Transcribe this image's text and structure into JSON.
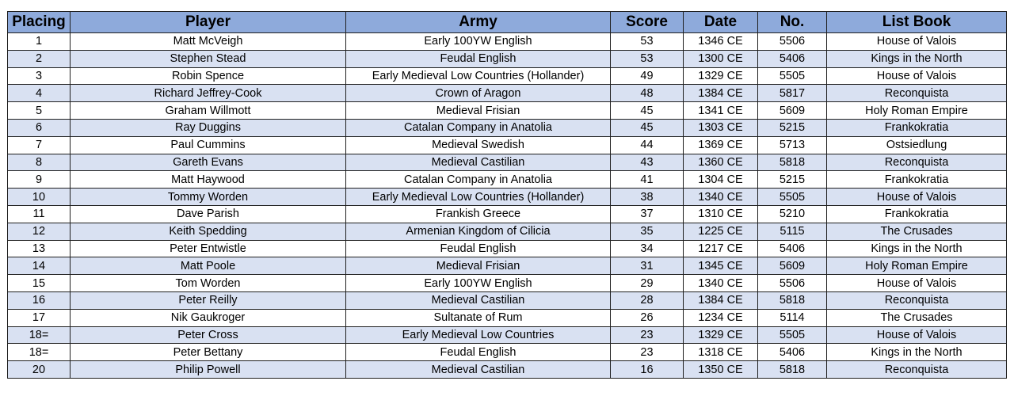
{
  "table": {
    "headers": [
      "Placing",
      "Player",
      "Army",
      "Score",
      "Date",
      "No.",
      "List Book"
    ],
    "rows": [
      [
        "1",
        "Matt McVeigh",
        "Early 100YW English",
        "53",
        "1346 CE",
        "5506",
        "House of Valois"
      ],
      [
        "2",
        "Stephen Stead",
        "Feudal English",
        "53",
        "1300 CE",
        "5406",
        "Kings in the North"
      ],
      [
        "3",
        "Robin Spence",
        "Early Medieval Low Countries (Hollander)",
        "49",
        "1329 CE",
        "5505",
        "House of Valois"
      ],
      [
        "4",
        "Richard Jeffrey-Cook",
        "Crown of Aragon",
        "48",
        "1384 CE",
        "5817",
        "Reconquista"
      ],
      [
        "5",
        "Graham Willmott",
        "Medieval Frisian",
        "45",
        "1341 CE",
        "5609",
        "Holy Roman Empire"
      ],
      [
        "6",
        "Ray Duggins",
        "Catalan Company in Anatolia",
        "45",
        "1303 CE",
        "5215",
        "Frankokratia"
      ],
      [
        "7",
        "Paul Cummins",
        "Medieval Swedish",
        "44",
        "1369 CE",
        "5713",
        "Ostsiedlung"
      ],
      [
        "8",
        "Gareth Evans",
        "Medieval Castilian",
        "43",
        "1360 CE",
        "5818",
        "Reconquista"
      ],
      [
        "9",
        "Matt Haywood",
        "Catalan Company in Anatolia",
        "41",
        "1304 CE",
        "5215",
        "Frankokratia"
      ],
      [
        "10",
        "Tommy Worden",
        "Early Medieval Low Countries (Hollander)",
        "38",
        "1340 CE",
        "5505",
        "House of Valois"
      ],
      [
        "11",
        "Dave Parish",
        "Frankish Greece",
        "37",
        "1310 CE",
        "5210",
        "Frankokratia"
      ],
      [
        "12",
        "Keith Spedding",
        "Armenian Kingdom of Cilicia",
        "35",
        "1225 CE",
        "5115",
        "The Crusades"
      ],
      [
        "13",
        "Peter Entwistle",
        "Feudal English",
        "34",
        "1217 CE",
        "5406",
        "Kings in the North"
      ],
      [
        "14",
        "Matt Poole",
        "Medieval Frisian",
        "31",
        "1345 CE",
        "5609",
        "Holy Roman Empire"
      ],
      [
        "15",
        "Tom Worden",
        "Early 100YW English",
        "29",
        "1340 CE",
        "5506",
        "House of Valois"
      ],
      [
        "16",
        "Peter Reilly",
        "Medieval Castilian",
        "28",
        "1384 CE",
        "5818",
        "Reconquista"
      ],
      [
        "17",
        "Nik Gaukroger",
        "Sultanate of Rum",
        "26",
        "1234 CE",
        "5114",
        "The Crusades"
      ],
      [
        "18=",
        "Peter Cross",
        "Early Medieval Low Countries",
        "23",
        "1329 CE",
        "5505",
        "House of Valois"
      ],
      [
        "18=",
        "Peter Bettany",
        "Feudal English",
        "23",
        "1318 CE",
        "5406",
        "Kings in the North"
      ],
      [
        "20",
        "Philip Powell",
        "Medieval Castilian",
        "16",
        "1350 CE",
        "5818",
        "Reconquista"
      ]
    ]
  }
}
